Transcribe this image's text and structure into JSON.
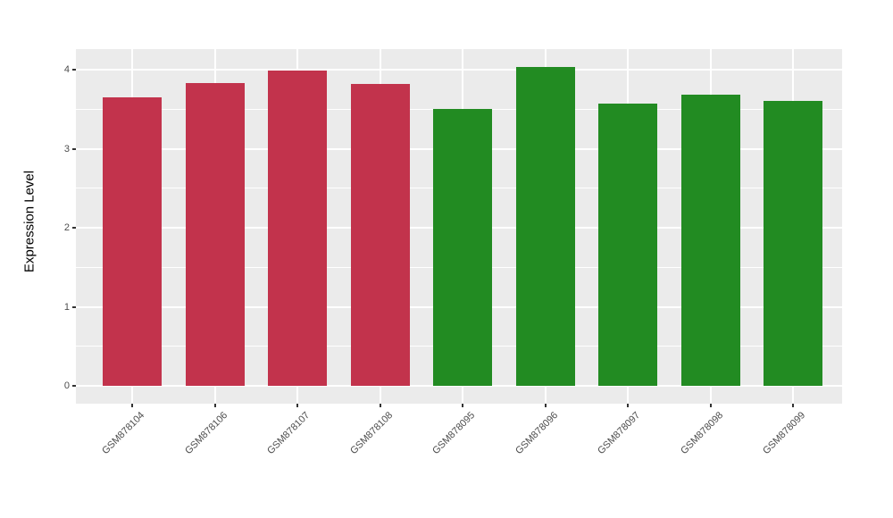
{
  "chart_data": {
    "type": "bar",
    "title": "",
    "xlabel": "",
    "ylabel": "Expression Level",
    "categories": [
      "GSM878104",
      "GSM878106",
      "GSM878107",
      "GSM878108",
      "GSM878095",
      "GSM878096",
      "GSM878097",
      "GSM878098",
      "GSM878099"
    ],
    "values": [
      3.65,
      3.83,
      3.99,
      3.82,
      3.5,
      4.03,
      3.57,
      3.68,
      3.6
    ],
    "bar_colors": [
      "#C2334C",
      "#C2334C",
      "#C2334C",
      "#C2334C",
      "#228B22",
      "#228B22",
      "#228B22",
      "#228B22",
      "#228B22"
    ],
    "group_colors": {
      "red": "#C2334C",
      "green": "#228B22"
    },
    "yticks": [
      0,
      1,
      2,
      3,
      4
    ],
    "minor_yticks": [
      0.5,
      1.5,
      2.5,
      3.5
    ],
    "ylim": [
      -0.2,
      4.26
    ],
    "x_label_angle": -45,
    "grid": true,
    "legend": false,
    "panel_bg": "#EBEBEB",
    "grid_color": "#FFFFFF",
    "axis_text_color": "#4D4D4D",
    "tick_color": "#333333"
  }
}
